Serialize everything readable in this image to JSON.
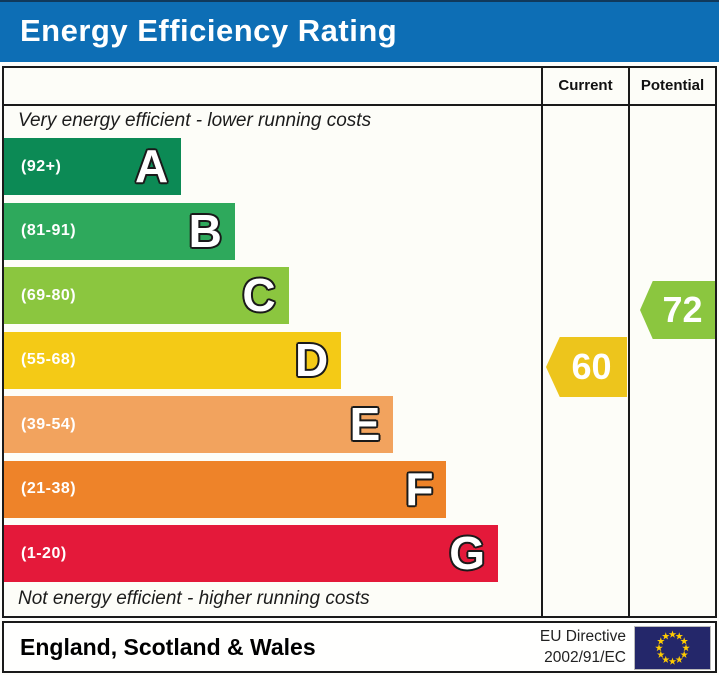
{
  "title": "Energy Efficiency Rating",
  "colors": {
    "title_bar": "#0d6eb5",
    "border": "#1a1a1a",
    "flag_bg": "#24276a",
    "flag_stars": "#ffcc00"
  },
  "columns": {
    "current": "Current",
    "potential": "Potential"
  },
  "top_note": "Very energy efficient - lower running costs",
  "bottom_note": "Not energy efficient - higher running costs",
  "bands": [
    {
      "letter": "A",
      "range": "(92+)",
      "color": "#0c8a55",
      "width_pct": 33
    },
    {
      "letter": "B",
      "range": "(81-91)",
      "color": "#2ea95c",
      "width_pct": 43
    },
    {
      "letter": "C",
      "range": "(69-80)",
      "color": "#8bc63f",
      "width_pct": 53
    },
    {
      "letter": "D",
      "range": "(55-68)",
      "color": "#f4ca16",
      "width_pct": 62.8
    },
    {
      "letter": "E",
      "range": "(39-54)",
      "color": "#f2a35e",
      "width_pct": 72.5
    },
    {
      "letter": "F",
      "range": "(21-38)",
      "color": "#ee8329",
      "width_pct": 82.4
    },
    {
      "letter": "G",
      "range": "(1-20)",
      "color": "#e4193a",
      "width_pct": 92
    }
  ],
  "current": {
    "value": "60",
    "band": "D",
    "color": "#edc51c"
  },
  "potential": {
    "value": "72",
    "band": "C",
    "color": "#8bc63f"
  },
  "footer": {
    "region": "England, Scotland & Wales",
    "directive_line1": "EU Directive",
    "directive_line2": "2002/91/EC"
  },
  "chart_data": {
    "type": "bar",
    "orientation": "horizontal",
    "title": "Energy Efficiency Rating",
    "categories": [
      "A",
      "B",
      "C",
      "D",
      "E",
      "F",
      "G"
    ],
    "category_ranges": [
      "92+",
      "81-91",
      "69-80",
      "55-68",
      "39-54",
      "21-38",
      "1-20"
    ],
    "bar_lengths_pct": [
      33,
      43,
      53,
      62.8,
      72.5,
      82.4,
      92
    ],
    "bar_colors": [
      "#0c8a55",
      "#2ea95c",
      "#8bc63f",
      "#f4ca16",
      "#f2a35e",
      "#ee8329",
      "#e4193a"
    ],
    "markers": [
      {
        "label": "Current",
        "value": 60,
        "band": "D",
        "color": "#edc51c"
      },
      {
        "label": "Potential",
        "value": 72,
        "band": "C",
        "color": "#8bc63f"
      }
    ],
    "annotations": [
      "Very energy efficient - lower running costs",
      "Not energy efficient - higher running costs"
    ],
    "legend_position": "top-right-columns",
    "footer_note": "England, Scotland & Wales | EU Directive 2002/91/EC"
  }
}
